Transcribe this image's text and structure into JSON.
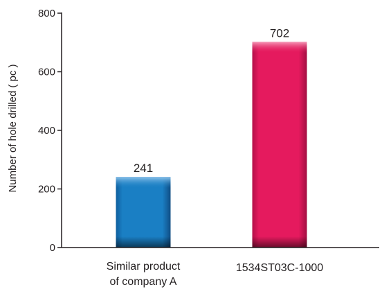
{
  "chart_data": {
    "type": "bar",
    "title": "",
    "xlabel": "",
    "ylabel": "Number of hole drilled ( pc )",
    "categories": [
      [
        "Similar product",
        "of company A"
      ],
      [
        "1534ST03C-1000"
      ]
    ],
    "values": [
      241,
      702
    ],
    "data_labels": [
      "241",
      "702"
    ],
    "ylim": [
      0,
      800
    ],
    "yticks": [
      0,
      200,
      400,
      600,
      800
    ],
    "grid": false,
    "legend": "none",
    "colors": {
      "bar_1": "#1a7fc4",
      "bar_2": "#e51a5e",
      "axis": "#231f20",
      "text": "#231f20"
    }
  }
}
